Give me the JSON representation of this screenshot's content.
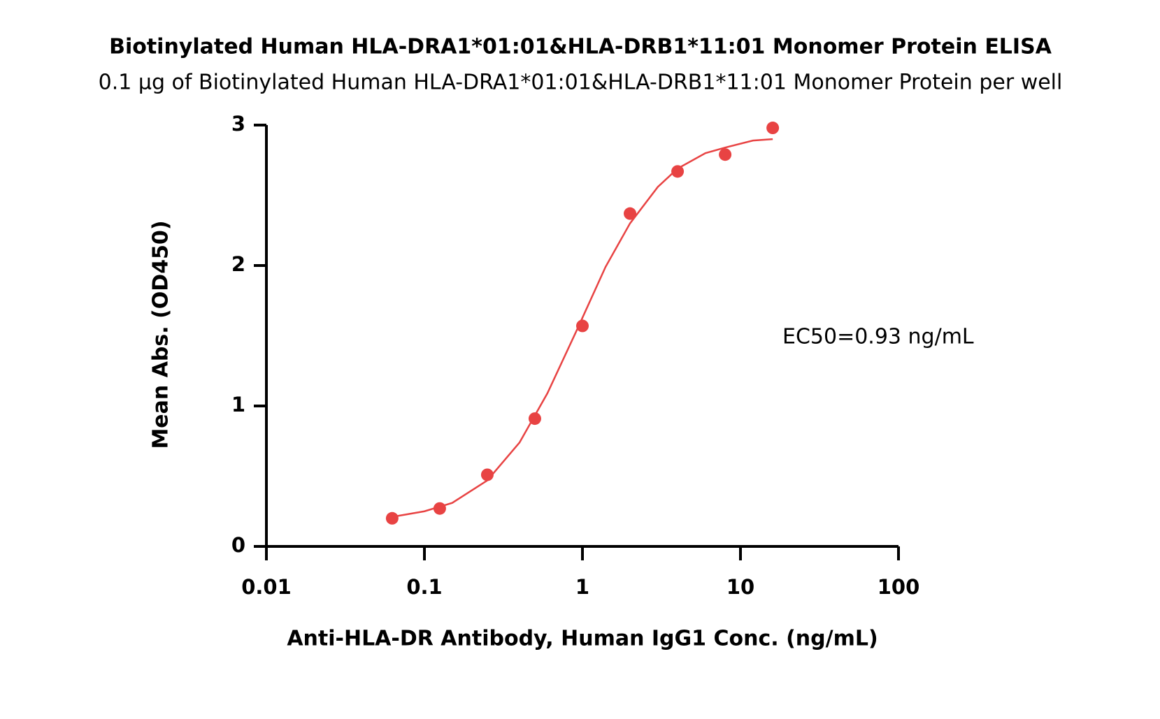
{
  "chart_data": {
    "type": "scatter",
    "title": "Biotinylated Human HLA-DRA1*01:01&HLA-DRB1*11:01 Monomer Protein ELISA",
    "subtitle": "0.1 µg of Biotinylated Human HLA-DRA1*01:01&HLA-DRB1*11:01 Monomer Protein per well",
    "x_label": "Anti-HLA-DR Antibody, Human IgG1 Conc. (ng/mL)",
    "y_label": "Mean Abs. (OD450)",
    "annotation": "EC50=0.93 ng/mL",
    "xscale": "log",
    "xlim": [
      0.01,
      100
    ],
    "xticks": [
      0.01,
      0.1,
      1,
      10,
      100
    ],
    "ylim": [
      0,
      3
    ],
    "yticks": [
      0,
      1,
      2,
      3
    ],
    "series": [
      {
        "type": "scatter",
        "color": "#e84343",
        "x": [
          0.0625,
          0.125,
          0.25,
          0.5,
          1,
          2,
          4,
          8,
          16
        ],
        "values": [
          0.2,
          0.27,
          0.51,
          0.91,
          1.57,
          2.37,
          2.67,
          2.79,
          2.98
        ]
      },
      {
        "type": "line",
        "color": "#e84343",
        "x": [
          0.0625,
          0.1,
          0.15,
          0.25,
          0.4,
          0.6,
          0.93,
          1.4,
          2,
          3,
          4,
          6,
          8,
          12,
          16
        ],
        "values": [
          0.21,
          0.25,
          0.31,
          0.47,
          0.74,
          1.09,
          1.55,
          1.99,
          2.3,
          2.56,
          2.69,
          2.8,
          2.84,
          2.89,
          2.9
        ]
      }
    ]
  }
}
